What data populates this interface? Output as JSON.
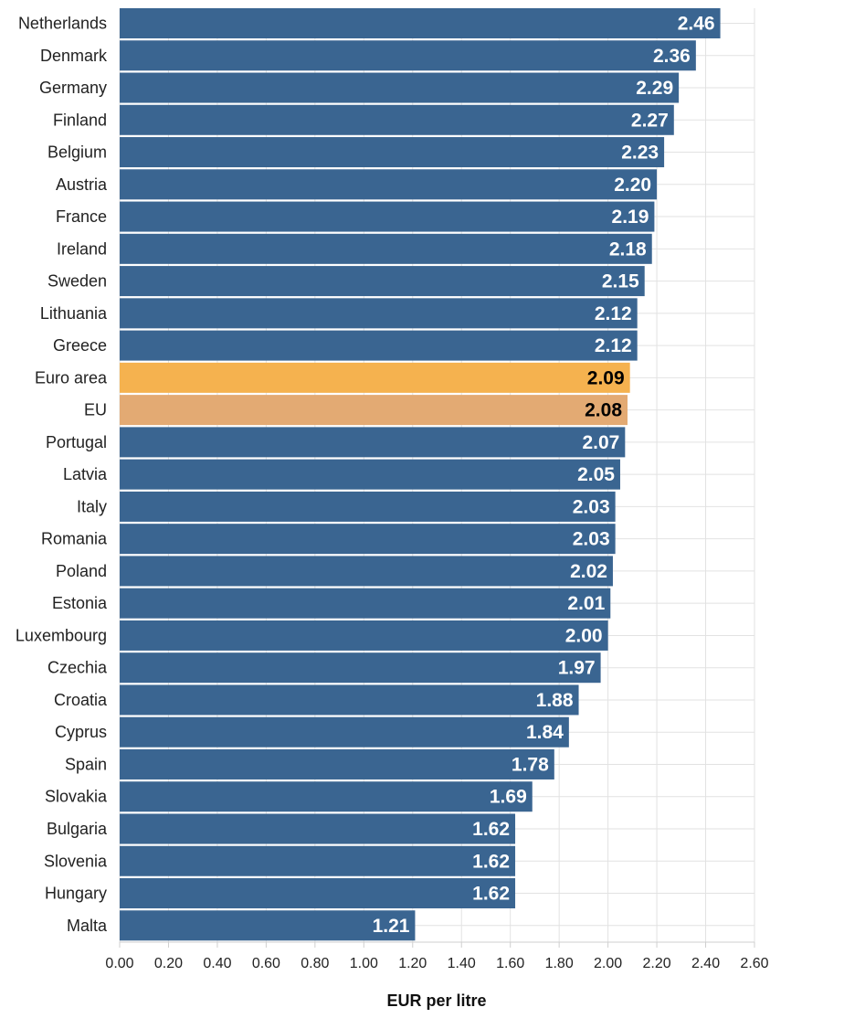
{
  "chart_data": {
    "type": "bar",
    "orientation": "horizontal",
    "categories": [
      "Netherlands",
      "Denmark",
      "Germany",
      "Finland",
      "Belgium",
      "Austria",
      "France",
      "Ireland",
      "Sweden",
      "Lithuania",
      "Greece",
      "Euro area",
      "EU",
      "Portugal",
      "Latvia",
      "Italy",
      "Romania",
      "Poland",
      "Estonia",
      "Luxembourg",
      "Czechia",
      "Croatia",
      "Cyprus",
      "Spain",
      "Slovakia",
      "Bulgaria",
      "Slovenia",
      "Hungary",
      "Malta"
    ],
    "values": [
      2.46,
      2.36,
      2.29,
      2.27,
      2.23,
      2.2,
      2.19,
      2.18,
      2.15,
      2.12,
      2.12,
      2.09,
      2.08,
      2.07,
      2.05,
      2.03,
      2.03,
      2.02,
      2.01,
      2.0,
      1.97,
      1.88,
      1.84,
      1.78,
      1.69,
      1.62,
      1.62,
      1.62,
      1.21
    ],
    "value_labels": [
      "2.46",
      "2.36",
      "2.29",
      "2.27",
      "2.23",
      "2.20",
      "2.19",
      "2.18",
      "2.15",
      "2.12",
      "2.12",
      "2.09",
      "2.08",
      "2.07",
      "2.05",
      "2.03",
      "2.03",
      "2.02",
      "2.01",
      "2.00",
      "1.97",
      "1.88",
      "1.84",
      "1.78",
      "1.69",
      "1.62",
      "1.62",
      "1.62",
      "1.21"
    ],
    "xlabel": "EUR per litre",
    "xlim": [
      0,
      2.6
    ],
    "xticks": [
      "0.00",
      "0.20",
      "0.40",
      "0.60",
      "0.80",
      "1.00",
      "1.20",
      "1.40",
      "1.60",
      "1.80",
      "2.00",
      "2.20",
      "2.40",
      "2.60"
    ],
    "grid": "vertical-lines",
    "colors": {
      "default_bar": "#3a6591",
      "euro_area_bar": "#f5b24f",
      "eu_bar": "#e3aa73",
      "default_label": "#ffffff",
      "highlight_label": "#000000"
    },
    "highlights": {
      "Euro area": "euro_area_bar",
      "EU": "eu_bar"
    }
  }
}
